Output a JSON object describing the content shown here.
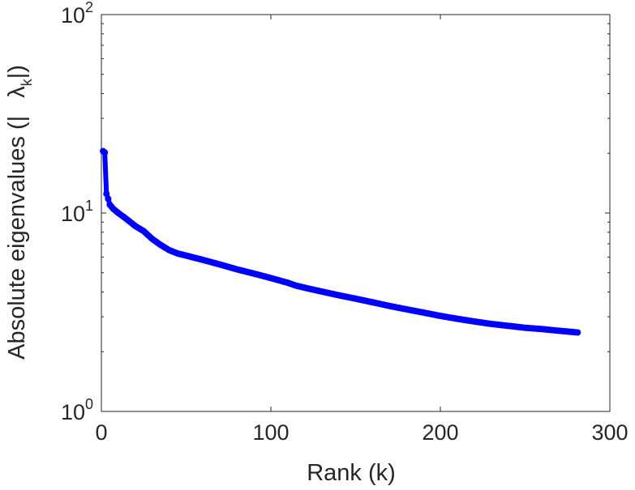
{
  "chart_data": {
    "type": "line",
    "xlabel": "Rank (k)",
    "ylabel": "Absolute eigenvalues (|",
    "ylabel_symbol": "λ",
    "ylabel_subscript": "k",
    "ylabel_suffix": "|)",
    "xlim": [
      0,
      300
    ],
    "ylim": [
      1,
      100
    ],
    "yscale": "log",
    "xticks": [
      0,
      100,
      200,
      300
    ],
    "xtick_labels": [
      "0",
      "100",
      "200",
      "300"
    ],
    "yticks": [
      1,
      10,
      100
    ],
    "ytick_labels": [
      {
        "base": "10",
        "exp": "0"
      },
      {
        "base": "10",
        "exp": "1"
      },
      {
        "base": "10",
        "exp": "2"
      }
    ],
    "grid": false,
    "series": [
      {
        "color": "#0000ff",
        "marker": "circle",
        "x": [
          1,
          2,
          3,
          4,
          5,
          7,
          10,
          15,
          20,
          25,
          30,
          35,
          40,
          45,
          50,
          60,
          70,
          80,
          90,
          100,
          110,
          115,
          120,
          130,
          140,
          150,
          160,
          170,
          180,
          190,
          200,
          210,
          220,
          230,
          240,
          250,
          260,
          270,
          281
        ],
        "y": [
          20.5,
          20.2,
          12.5,
          11.8,
          11.0,
          10.5,
          10.0,
          9.3,
          8.6,
          8.1,
          7.4,
          6.9,
          6.5,
          6.25,
          6.1,
          5.8,
          5.5,
          5.2,
          4.95,
          4.7,
          4.45,
          4.3,
          4.2,
          4.02,
          3.85,
          3.7,
          3.55,
          3.4,
          3.27,
          3.15,
          3.03,
          2.93,
          2.84,
          2.76,
          2.7,
          2.64,
          2.6,
          2.55,
          2.5
        ]
      }
    ]
  }
}
